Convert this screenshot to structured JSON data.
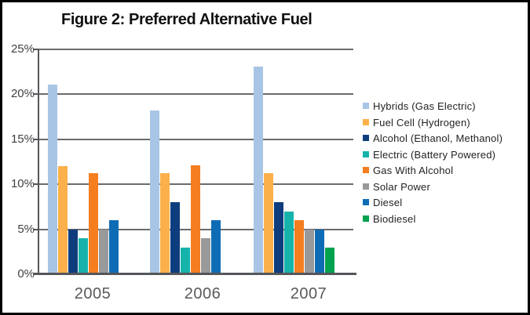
{
  "figure": {
    "title": "Figure 2: Preferred Alternative Fuel"
  },
  "chart_data": {
    "type": "bar",
    "title": "Figure 2: Preferred Alternative Fuel",
    "categories": [
      "2005",
      "2006",
      "2007"
    ],
    "series": [
      {
        "name": "Hybrids (Gas Electric)",
        "color": "#A9C5E5",
        "values": [
          21.1,
          18.2,
          23.1
        ]
      },
      {
        "name": "Fuel Cell (Hydrogen)",
        "color": "#FBB04B",
        "values": [
          12.0,
          11.2,
          11.2
        ]
      },
      {
        "name": "Alcohol (Ethanol, Methanol)",
        "color": "#0E3D7D",
        "values": [
          5.0,
          8.0,
          8.0
        ]
      },
      {
        "name": "Electric (Battery Powered)",
        "color": "#16B3AB",
        "values": [
          4.0,
          3.0,
          7.0
        ]
      },
      {
        "name": "Gas With Alcohol",
        "color": "#F57E20",
        "values": [
          11.2,
          12.1,
          6.0
        ]
      },
      {
        "name": "Solar Power",
        "color": "#97999B",
        "values": [
          5.0,
          4.0,
          5.0
        ]
      },
      {
        "name": "Diesel",
        "color": "#0E6CB5",
        "values": [
          6.0,
          6.0,
          5.0
        ]
      },
      {
        "name": "Biodiesel",
        "color": "#00A14F",
        "values": [
          null,
          null,
          3.0
        ]
      }
    ],
    "xlabel": "",
    "ylabel": "",
    "ylim": [
      0,
      25
    ],
    "yticks": [
      "25%",
      "20%",
      "15%",
      "10%",
      "5%",
      "0%"
    ],
    "ytick_values": [
      25,
      20,
      15,
      10,
      5,
      0
    ],
    "grid": true,
    "legend_position": "right"
  }
}
